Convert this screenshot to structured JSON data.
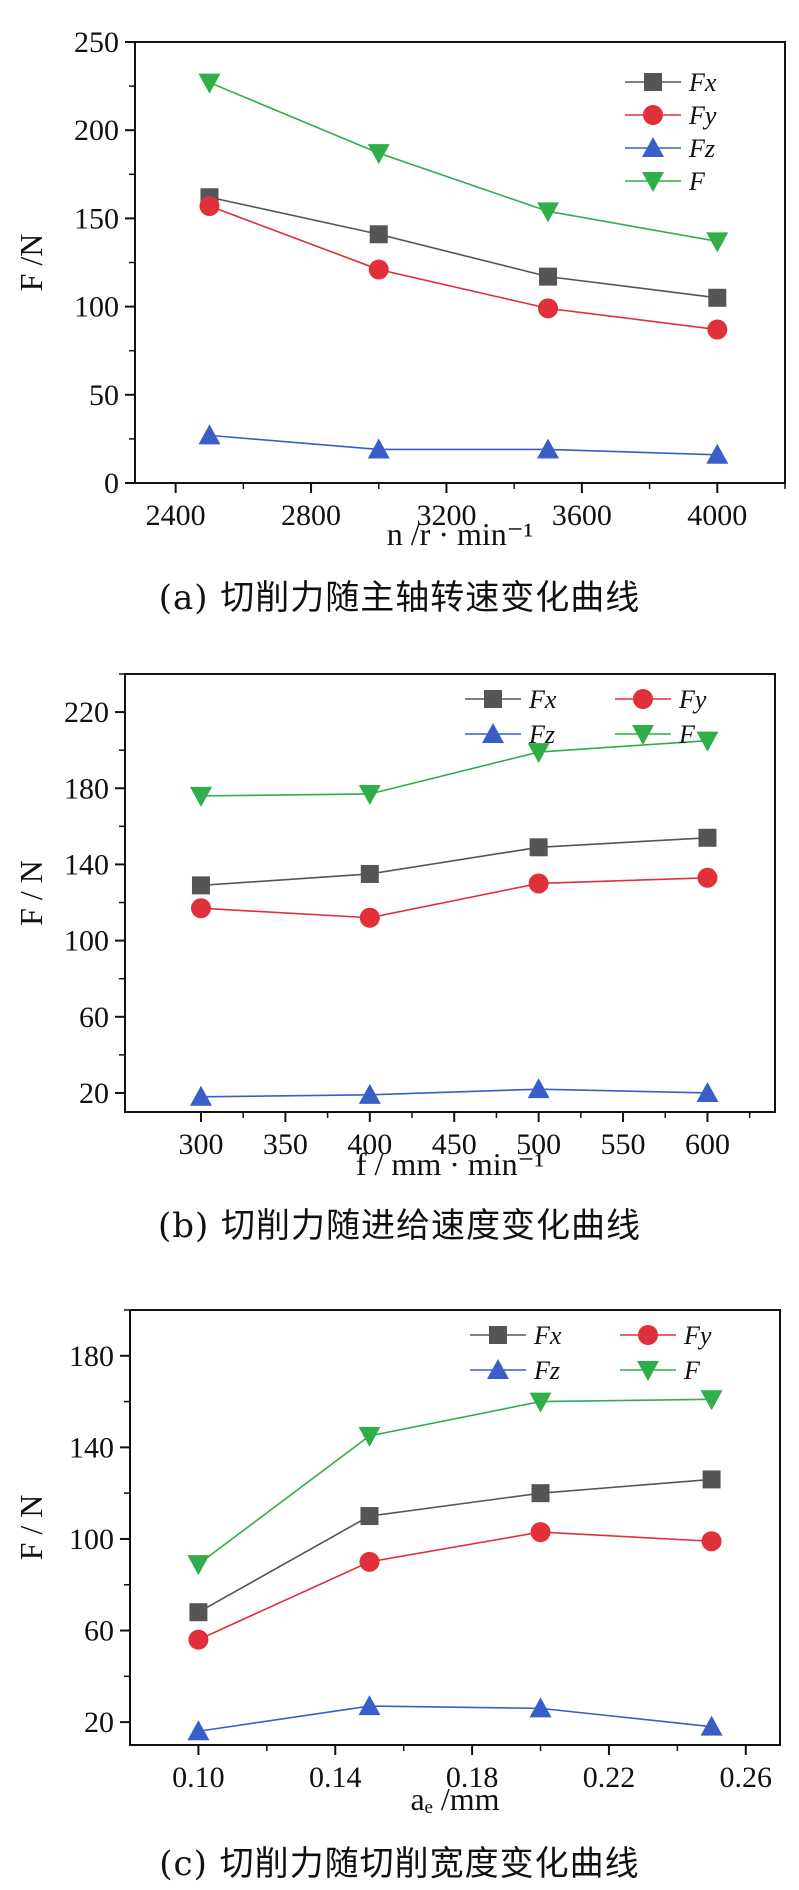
{
  "chart_data": [
    {
      "type": "line",
      "caption": "(a)  切削力随主轴转速变化曲线",
      "xlabel": "n /r · min⁻¹",
      "ylabel": "F /N",
      "x": [
        2500,
        3000,
        3500,
        4000
      ],
      "xlim": [
        2280,
        4200
      ],
      "ylim": [
        0,
        250
      ],
      "xticks": [
        "2400",
        "2800",
        "3200",
        "3600",
        "4000"
      ],
      "yticks": [
        "0",
        "50",
        "100",
        "150",
        "200",
        "250"
      ],
      "legend_position": "top-right",
      "legend_columns": 1,
      "series": [
        {
          "name": "Fx",
          "values": [
            162,
            141,
            117,
            105
          ],
          "color": "#555555",
          "marker": "square"
        },
        {
          "name": "Fy",
          "values": [
            157,
            121,
            99,
            87
          ],
          "color": "#e0303a",
          "marker": "circle"
        },
        {
          "name": "Fz",
          "values": [
            27,
            19,
            19,
            16
          ],
          "color": "#3a5ec8",
          "marker": "triangle-up"
        },
        {
          "name": "F",
          "values": [
            227,
            187,
            154,
            137
          ],
          "color": "#2fae4a",
          "marker": "triangle-down"
        }
      ]
    },
    {
      "type": "line",
      "caption": "(b)  切削力随进给速度变化曲线",
      "xlabel": "f / mm · min⁻¹",
      "ylabel": "F / N",
      "x": [
        300,
        400,
        500,
        600
      ],
      "xlim": [
        255,
        640
      ],
      "ylim": [
        10,
        240
      ],
      "xticks": [
        "300",
        "350",
        "400",
        "450",
        "500",
        "550",
        "600"
      ],
      "yticks": [
        "20",
        "60",
        "100",
        "140",
        "180",
        "220"
      ],
      "legend_position": "top-right",
      "legend_columns": 2,
      "series": [
        {
          "name": "Fx",
          "values": [
            129,
            135,
            149,
            154
          ],
          "color": "#555555",
          "marker": "square"
        },
        {
          "name": "Fy",
          "values": [
            117,
            112,
            130,
            133
          ],
          "color": "#e0303a",
          "marker": "circle"
        },
        {
          "name": "Fz",
          "values": [
            18,
            19,
            22,
            20
          ],
          "color": "#3a5ec8",
          "marker": "triangle-up"
        },
        {
          "name": "F",
          "values": [
            176,
            177,
            199,
            205
          ],
          "color": "#2fae4a",
          "marker": "triangle-down"
        }
      ]
    },
    {
      "type": "line",
      "caption": "(c)  切削力随切削宽度变化曲线",
      "xlabel": "aₑ /mm",
      "ylabel": "F / N",
      "x": [
        0.1,
        0.15,
        0.2,
        0.25
      ],
      "xlim": [
        0.08,
        0.27
      ],
      "ylim": [
        10,
        200
      ],
      "xticks": [
        "0.10",
        "0.14",
        "0.18",
        "0.22",
        "0.26"
      ],
      "yticks": [
        "20",
        "60",
        "100",
        "140",
        "180"
      ],
      "legend_position": "top-right",
      "legend_columns": 2,
      "series": [
        {
          "name": "Fx",
          "values": [
            68,
            110,
            120,
            126
          ],
          "color": "#555555",
          "marker": "square"
        },
        {
          "name": "Fy",
          "values": [
            56,
            90,
            103,
            99
          ],
          "color": "#e0303a",
          "marker": "circle"
        },
        {
          "name": "Fz",
          "values": [
            16,
            27,
            26,
            18
          ],
          "color": "#3a5ec8",
          "marker": "triangle-up"
        },
        {
          "name": "F",
          "values": [
            89,
            145,
            160,
            161
          ],
          "color": "#2fae4a",
          "marker": "triangle-down"
        }
      ]
    }
  ]
}
